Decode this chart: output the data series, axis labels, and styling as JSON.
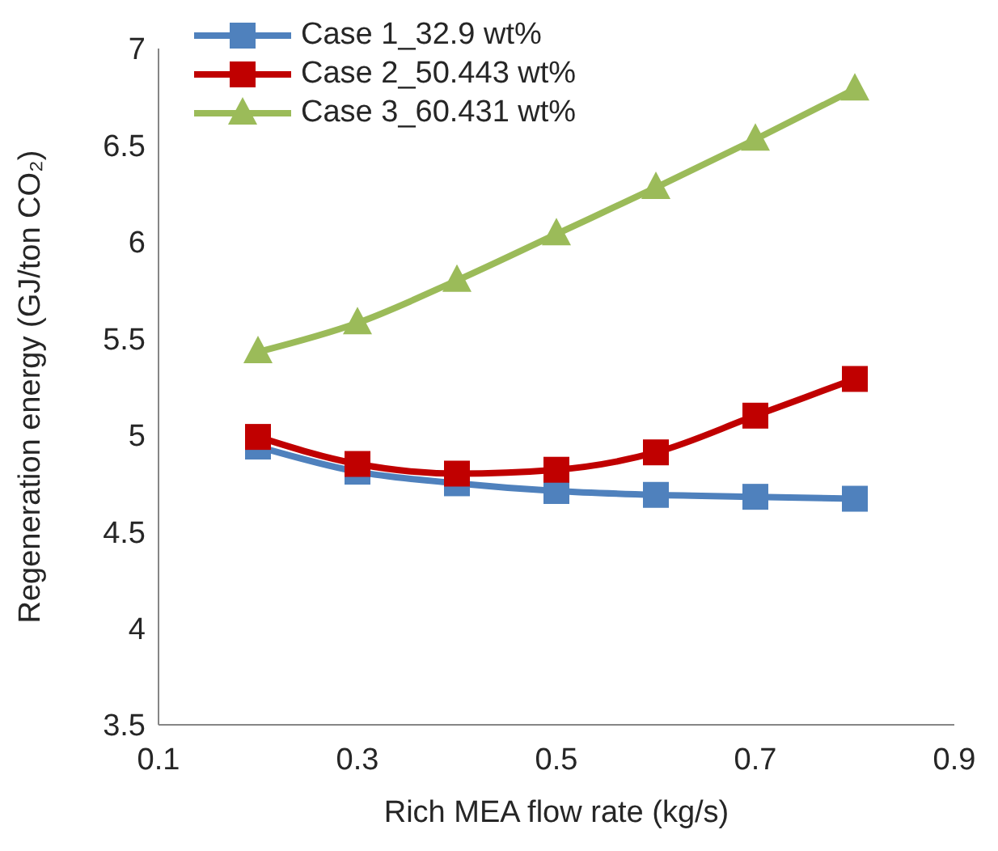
{
  "chart_data": {
    "type": "line",
    "xlabel": "Rich MEA flow rate (kg/s)",
    "ylabel": "Regeneration energy (GJ/ton CO₂)",
    "x": [
      0.2,
      0.3,
      0.4,
      0.5,
      0.6,
      0.7,
      0.8
    ],
    "series": [
      {
        "name": "Case 1_32.9 wt%",
        "color": "#4f81bd",
        "marker": "square",
        "values": [
          4.94,
          4.81,
          4.75,
          4.71,
          4.69,
          4.68,
          4.67
        ]
      },
      {
        "name": "Case 2_50.443 wt%",
        "color": "#c00000",
        "marker": "square",
        "values": [
          4.99,
          4.85,
          4.8,
          4.82,
          4.91,
          5.1,
          5.29
        ]
      },
      {
        "name": "Case 3_60.431 wt%",
        "color": "#9bbb59",
        "marker": "triangle",
        "values": [
          5.43,
          5.58,
          5.8,
          6.04,
          6.28,
          6.53,
          6.79
        ]
      }
    ],
    "xlim": [
      0.1,
      0.9
    ],
    "xticks": [
      0.1,
      0.3,
      0.5,
      0.7,
      0.9
    ],
    "ylim": [
      3.5,
      7
    ],
    "yticks": [
      3.5,
      4,
      4.5,
      5,
      5.5,
      6,
      6.5,
      7
    ],
    "grid": false,
    "legend": "top left",
    "line_style": "solid"
  }
}
